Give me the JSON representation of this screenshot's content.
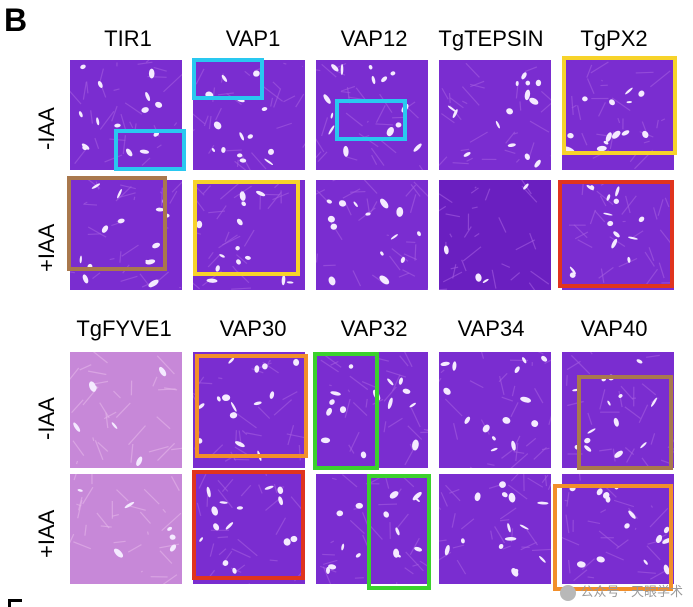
{
  "panel": {
    "letter": "B",
    "top_block": {
      "columns": [
        "TIR1",
        "VAP1",
        "VAP12",
        "TgTEPSIN",
        "TgPX2"
      ],
      "rows": [
        "-IAA",
        "+IAA"
      ]
    },
    "bottom_block": {
      "columns": [
        "TgFYVE1",
        "VAP30",
        "VAP32",
        "VAP34",
        "VAP40"
      ],
      "rows": [
        "-IAA",
        "+IAA"
      ]
    }
  },
  "highlight_colors": {
    "cyan": "#29c8f0",
    "yellow": "#f7d32a",
    "brown": "#a9784d",
    "red": "#e0341e",
    "orange": "#f28f2a",
    "green": "#3bd12c"
  },
  "tile_colors": {
    "normal": "#7a2dd0",
    "dense": "#6a1fc0",
    "pink": "#c788d8"
  },
  "watermark": {
    "text": "公众号 · 天眼学术"
  }
}
